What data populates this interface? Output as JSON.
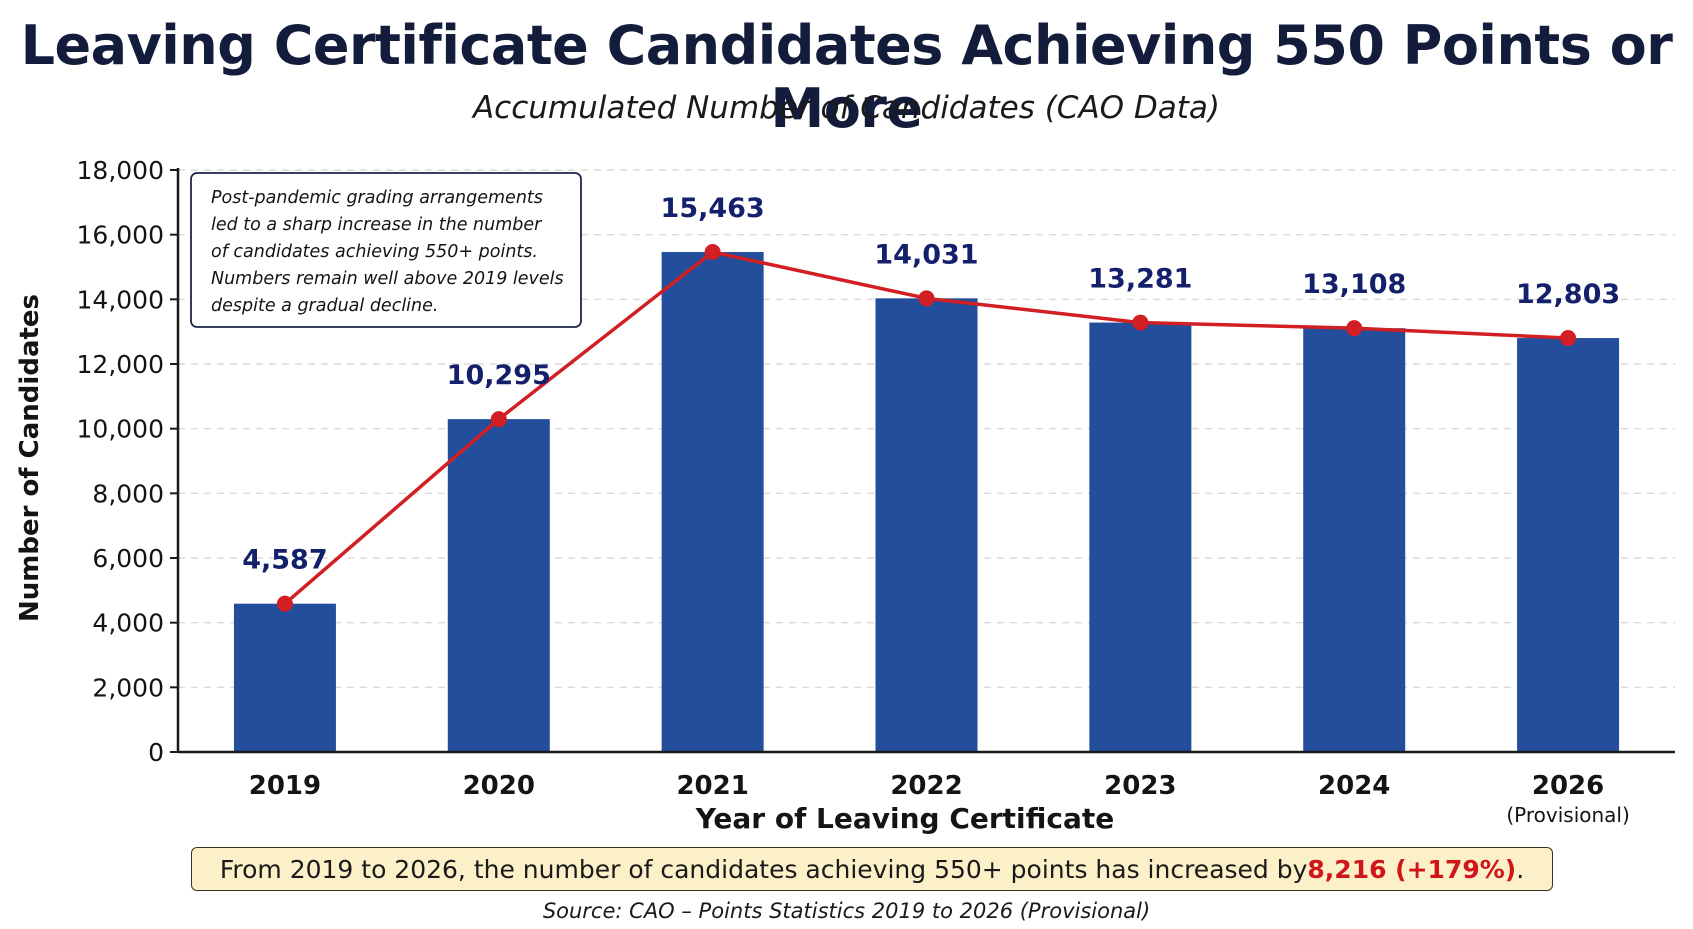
{
  "colors": {
    "bar": "#224e9b",
    "line": "#d11f23",
    "label": "#14206b",
    "highlight": "#d0151b"
  },
  "chart_data": {
    "type": "bar",
    "title": "Leaving Certificate Candidates Achieving 550 Points or More",
    "subtitle": "Accumulated Number of Candidates (CAO Data)",
    "xlabel": "Year of Leaving Certificate",
    "ylabel": "Number of Candidates",
    "ylim": [
      0,
      18000
    ],
    "yticks": [
      "0",
      "2,000",
      "4,000",
      "6,000",
      "8,000",
      "10,000",
      "12,000",
      "14,000",
      "16,000",
      "18,000"
    ],
    "grid": true,
    "categories": [
      "2019",
      "2020",
      "2021",
      "2022",
      "2023",
      "2024",
      "2026"
    ],
    "category_notes": [
      "",
      "",
      "",
      "",
      "",
      "",
      "(Provisional)"
    ],
    "values": [
      4587,
      10295,
      15463,
      14031,
      13281,
      13108,
      12803
    ],
    "data_labels": [
      "4,587",
      "10,295",
      "15,463",
      "14,031",
      "13,281",
      "13,108",
      "12,803"
    ],
    "overlay": "line",
    "annotation": "Post-pandemic grading arrangements led to a sharp increase in the number of candidates achieving 550+ points. Numbers remain well above 2019 levels despite a gradual decline.",
    "annotation_lines": [
      "Post-pandemic grading arrangements",
      "led to a sharp increase in the number",
      "of candidates achieving 550+ points.",
      "Numbers remain well above 2019 levels",
      "despite a gradual decline."
    ]
  },
  "summary": {
    "before": "From 2019 to 2026, the number of candidates achieving 550+ points has increased by ",
    "highlight": "8,216 (+179%)",
    "after": "."
  },
  "source": "Source: CAO – Points Statistics 2019 to 2026 (Provisional)"
}
